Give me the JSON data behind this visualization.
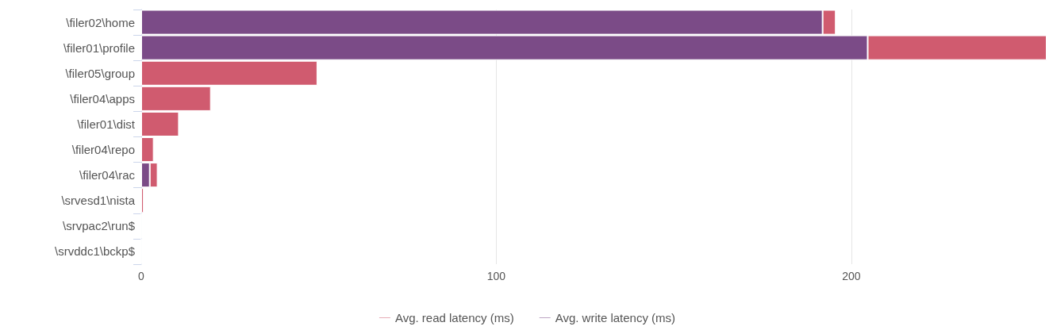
{
  "chart_data": {
    "type": "bar",
    "orientation": "horizontal",
    "stacked": true,
    "categories": [
      "\\filer02\\home",
      "\\filer01\\profile",
      "\\filer05\\group",
      "\\filer04\\apps",
      "\\filer01\\dist",
      "\\filer04\\repo",
      "\\filer04\\rac",
      "\\srvesd1\\nista",
      "\\srvpac2\\run$",
      "\\srvddc1\\bckp$"
    ],
    "series": [
      {
        "name": "Avg. write latency (ms)",
        "color": "#7b4b87",
        "values": [
          191.9,
          204.6,
          0,
          0,
          0,
          0,
          2.4,
          0,
          0,
          0
        ]
      },
      {
        "name": "Avg. read latency (ms)",
        "color": "#d05b6f",
        "values": [
          3.7,
          50.4,
          49.6,
          19.6,
          10.6,
          3.5,
          2.2,
          0.7,
          0,
          0
        ]
      }
    ],
    "xlim": [
      0,
      255
    ],
    "xticks": [
      0,
      100,
      200
    ],
    "grid": "x",
    "legend": "bottom"
  }
}
